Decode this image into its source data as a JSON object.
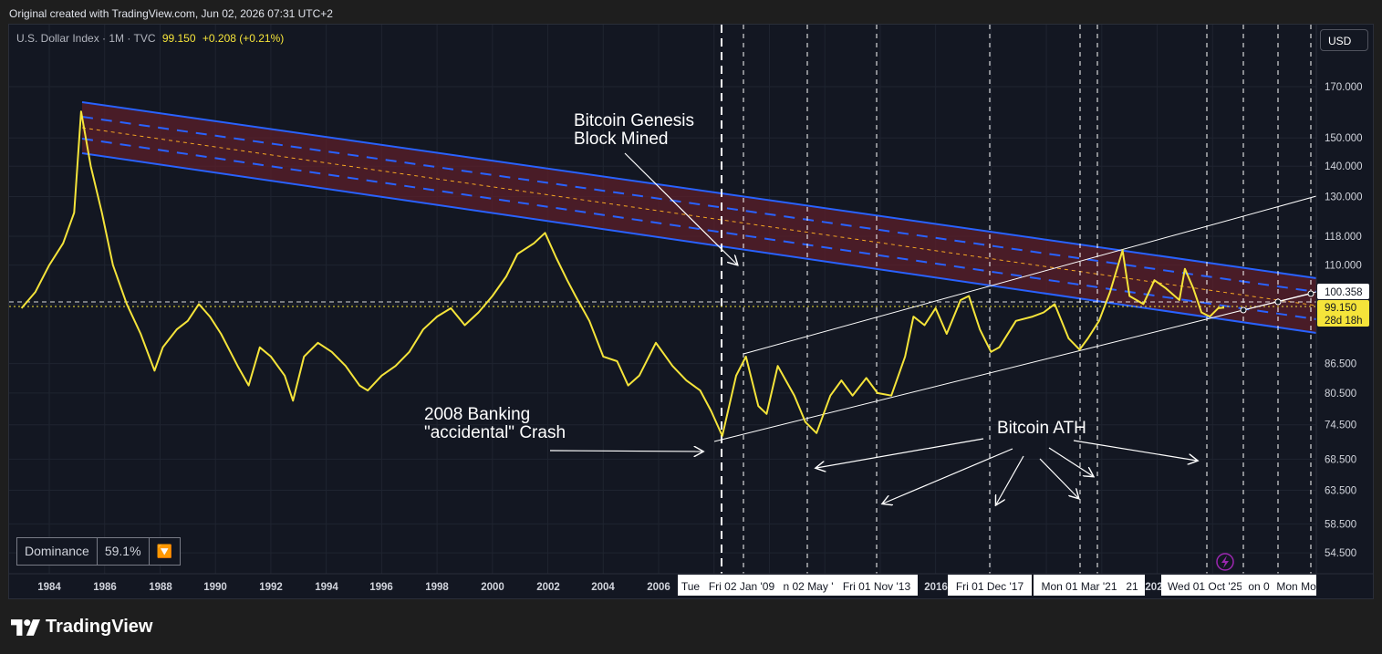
{
  "header": {
    "text": "Original created with TradingView.com, Jun 02, 2026 07:31 UTC+2"
  },
  "symbol": {
    "name": "U.S. Dollar Index · 1M · TVC",
    "price": "99.150",
    "change": "+0.208 (+0.21%)"
  },
  "currency_button": "USD",
  "indicator": {
    "name": "Dominance",
    "value": "59.1%",
    "icon": "orange-down-triangle"
  },
  "brand": "TradingView",
  "colors": {
    "price_line": "#f5e43a",
    "channel_line": "#2962ff",
    "channel_fill": "#5c1f2a",
    "midline": "#f5a623",
    "label_bg": "#f5e43a"
  },
  "chart_data": {
    "type": "line",
    "scale": "log",
    "series": [
      {
        "values": [
          [
            1983.0,
            99
          ],
          [
            1983.5,
            103
          ],
          [
            1984.0,
            110
          ],
          [
            1984.5,
            116
          ],
          [
            1984.9,
            125
          ],
          [
            1985.15,
            160
          ],
          [
            1985.5,
            140
          ],
          [
            1985.9,
            125
          ],
          [
            1986.3,
            110
          ],
          [
            1986.8,
            100
          ],
          [
            1987.3,
            93
          ],
          [
            1987.8,
            85
          ],
          [
            1988.1,
            90
          ],
          [
            1988.6,
            94
          ],
          [
            1989.0,
            96
          ],
          [
            1989.4,
            100
          ],
          [
            1989.8,
            97
          ],
          [
            1990.2,
            93
          ],
          [
            1990.8,
            86
          ],
          [
            1991.2,
            82
          ],
          [
            1991.6,
            90
          ],
          [
            1992.0,
            88
          ],
          [
            1992.5,
            84
          ],
          [
            1992.8,
            79
          ],
          [
            1993.2,
            88
          ],
          [
            1993.7,
            91
          ],
          [
            1994.2,
            89
          ],
          [
            1994.7,
            86
          ],
          [
            1995.2,
            82
          ],
          [
            1995.5,
            81
          ],
          [
            1996.0,
            84
          ],
          [
            1996.5,
            86
          ],
          [
            1997.0,
            89
          ],
          [
            1997.5,
            94
          ],
          [
            1998.0,
            97
          ],
          [
            1998.5,
            99
          ],
          [
            1999.0,
            95
          ],
          [
            1999.5,
            98
          ],
          [
            2000.0,
            102
          ],
          [
            2000.5,
            107
          ],
          [
            2000.9,
            113
          ],
          [
            2001.5,
            116
          ],
          [
            2001.9,
            119
          ],
          [
            2002.3,
            112
          ],
          [
            2002.7,
            106
          ],
          [
            2003.0,
            102
          ],
          [
            2003.5,
            96
          ],
          [
            2004.0,
            88
          ],
          [
            2004.5,
            87
          ],
          [
            2004.9,
            82
          ],
          [
            2005.3,
            84
          ],
          [
            2005.9,
            91
          ],
          [
            2006.5,
            86
          ],
          [
            2007.0,
            83
          ],
          [
            2007.5,
            81
          ],
          [
            2007.9,
            77
          ],
          [
            2008.3,
            72.5
          ],
          [
            2008.8,
            84
          ],
          [
            2009.15,
            88
          ],
          [
            2009.6,
            78
          ],
          [
            2009.9,
            76.5
          ],
          [
            2010.3,
            86
          ],
          [
            2010.9,
            80
          ],
          [
            2011.3,
            75
          ],
          [
            2011.7,
            73
          ],
          [
            2012.2,
            80
          ],
          [
            2012.6,
            83
          ],
          [
            2013.0,
            80
          ],
          [
            2013.5,
            83.5
          ],
          [
            2013.9,
            80.5
          ],
          [
            2014.4,
            80
          ],
          [
            2014.9,
            88
          ],
          [
            2015.2,
            97
          ],
          [
            2015.6,
            95
          ],
          [
            2016.0,
            99
          ],
          [
            2016.4,
            93
          ],
          [
            2016.9,
            101
          ],
          [
            2017.2,
            102
          ],
          [
            2017.6,
            94
          ],
          [
            2018.0,
            89
          ],
          [
            2018.3,
            90
          ],
          [
            2018.9,
            96
          ],
          [
            2019.5,
            97
          ],
          [
            2019.9,
            98
          ],
          [
            2020.3,
            100
          ],
          [
            2020.8,
            92
          ],
          [
            2021.2,
            89.5
          ],
          [
            2021.5,
            92
          ],
          [
            2021.9,
            96
          ],
          [
            2022.3,
            103
          ],
          [
            2022.75,
            114
          ],
          [
            2023.0,
            102
          ],
          [
            2023.5,
            100
          ],
          [
            2023.9,
            106
          ],
          [
            2024.3,
            104
          ],
          [
            2024.8,
            101
          ],
          [
            2025.0,
            109
          ],
          [
            2025.3,
            104
          ],
          [
            2025.6,
            98
          ],
          [
            2025.9,
            97
          ],
          [
            2026.2,
            99
          ],
          [
            2026.42,
            99.15
          ]
        ]
      }
    ],
    "x_ticks": [
      "1984",
      "1986",
      "1988",
      "1990",
      "1992",
      "1994",
      "1996",
      "1998",
      "2000",
      "2002",
      "2004",
      "2006",
      "2016",
      "202"
    ],
    "y_ticks": [
      "170.000",
      "150.000",
      "140.000",
      "130.000",
      "118.000",
      "110.000",
      "100.000",
      "86.500",
      "80.500",
      "74.500",
      "68.500",
      "63.500",
      "58.500",
      "54.500"
    ],
    "ylim": [
      52,
      185
    ],
    "xlim": [
      1982.8,
      2027.2
    ],
    "grid": true,
    "price_labels": [
      {
        "value": 100.358,
        "text": "100.358"
      },
      {
        "value": 99.15,
        "text": "99.150",
        "sub": "28d 18h"
      }
    ],
    "vertical_markers": [
      {
        "x": 2008.9,
        "label": "Tue",
        "style": "thick"
      },
      {
        "x": 2009.7,
        "label": "Fri 02 Jan '09"
      },
      {
        "x": 2012.0,
        "label": "n 02 May '"
      },
      {
        "x": 2014.5,
        "label": "Fri 01 Nov '13"
      },
      {
        "x": 2018.6,
        "label": "Fri 01 Dec '17"
      },
      {
        "x": 2021.85,
        "label": "Mon 01 Mar '21"
      },
      {
        "x": 2022.5,
        "label": "21"
      },
      {
        "x": 2026.1,
        "label": "Wed 01 Oct '25"
      },
      {
        "x": 2027.4,
        "label": "on 0"
      },
      {
        "x": 2028.6,
        "label": "Mon"
      },
      {
        "x": 2029.8,
        "label": "Mo"
      }
    ],
    "annotations": [
      {
        "text": "Bitcoin Genesis\nBlock Mined",
        "x": 2001.8,
        "y": 155
      },
      {
        "text": "2008 Banking\n\"accidental\" Crash",
        "x": 1997.4,
        "y": 74
      },
      {
        "text": "Bitcoin ATH",
        "x": 2019.2,
        "y": 73.3
      }
    ]
  }
}
